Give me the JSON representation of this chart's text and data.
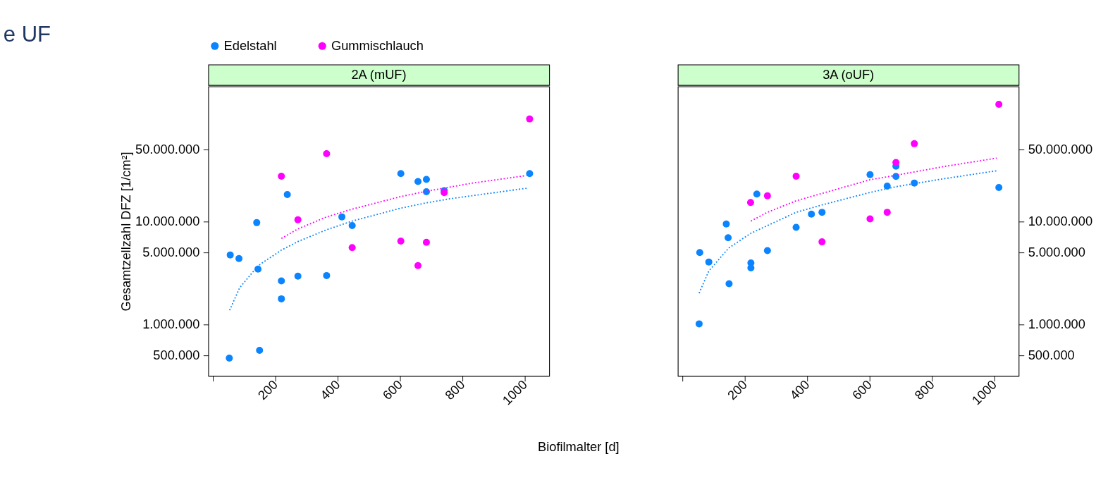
{
  "chart_data": [
    {
      "type": "scatter",
      "title": "2A (mUF)",
      "xlabel": "Biofilmalter [d]",
      "ylabel": "Gesamtzellzahl DFZ [1/cm²]",
      "annotations": [
        "e UF"
      ],
      "log": "y",
      "grid": false,
      "legend": "top",
      "marker": "circle",
      "xlim": [
        -15,
        1078
      ],
      "xticks": [
        {
          "value": 0,
          "label": null
        },
        200,
        400,
        600,
        800,
        1000
      ],
      "ylim": [
        314000,
        206000000
      ],
      "yticks": [
        {
          "value": 500000,
          "label": "500.000"
        },
        {
          "value": 1000000,
          "label": "1.000.000"
        },
        {
          "value": 5000000,
          "label": "5.000.000"
        },
        {
          "value": 10000000,
          "label": "10.000.000"
        },
        {
          "value": 50000000,
          "label": "50.000.000"
        }
      ],
      "series": [
        {
          "name": "Edelstahl",
          "color": "#0a84ff",
          "x": [
            52,
            55,
            83,
            140,
            144,
            149,
            219,
            219,
            238,
            272,
            364,
            413,
            446,
            602,
            657,
            684,
            684,
            741,
            1015
          ],
          "values": [
            469000,
            4730000,
            4360000,
            9750000,
            3440000,
            558000,
            2640000,
            1770000,
            18300000,
            2940000,
            2980000,
            11100000,
            9140000,
            29300000,
            24500000,
            25700000,
            19500000,
            20000000,
            29300000
          ]
        },
        {
          "name": "Gummischlauch",
          "color": "#ff00ff",
          "x": [
            219,
            364,
            272,
            446,
            602,
            684,
            657,
            741,
            1015
          ],
          "values": [
            27600000,
            45800000,
            10400000,
            5580000,
            6450000,
            6280000,
            3730000,
            19100000,
            99600000
          ]
        },
        {
          "type": "line",
          "line_style": "dotted",
          "marker": "none",
          "color": "#0a84ff",
          "x": [
            53,
            85,
            144,
            219,
            271,
            364,
            446,
            602,
            684,
            762,
            1006
          ],
          "values": [
            1370000,
            2260000,
            3710000,
            5270000,
            6360000,
            8320000,
            10100000,
            13500000,
            15200000,
            16700000,
            21100000
          ]
        },
        {
          "type": "line",
          "line_style": "dotted",
          "marker": "none",
          "color": "#ff00ff",
          "x": [
            219,
            271,
            364,
            446,
            602,
            684,
            833,
            1004
          ],
          "values": [
            6840000,
            8440000,
            11100000,
            13200000,
            17500000,
            19700000,
            23700000,
            28000000
          ]
        }
      ]
    },
    {
      "type": "scatter",
      "title": "3A (oUF)",
      "log": "y",
      "grid": false,
      "marker": "circle",
      "xlim": [
        -15,
        1078
      ],
      "xticks": [
        {
          "value": 0,
          "label": null
        },
        200,
        400,
        600,
        800,
        1000
      ],
      "ylim": [
        314000,
        206000000
      ],
      "yticks": [
        {
          "value": 500000,
          "label": "500.000"
        },
        {
          "value": 1000000,
          "label": "1.000.000"
        },
        {
          "value": 5000000,
          "label": "5.000.000"
        },
        {
          "value": 10000000,
          "label": "10.000.000"
        },
        {
          "value": 50000000,
          "label": "50.000.000"
        }
      ],
      "series": [
        {
          "name": "Edelstahl",
          "color": "#0a84ff",
          "x": [
            53,
            55,
            84,
            140,
            146,
            149,
            219,
            219,
            238,
            272,
            364,
            413,
            447,
            601,
            656,
            684,
            684,
            743,
            1014
          ],
          "values": [
            1010000,
            4990000,
            4040000,
            9450000,
            6960000,
            2480000,
            3950000,
            3540000,
            18500000,
            5220000,
            8770000,
            11800000,
            12300000,
            28600000,
            22100000,
            34600000,
            27500000,
            23700000,
            21400000
          ]
        },
        {
          "name": "Gummischlauch",
          "color": "#ff00ff",
          "x": [
            218,
            272,
            364,
            447,
            601,
            656,
            684,
            743,
            1014
          ],
          "values": [
            15300000,
            17800000,
            27600000,
            6340000,
            10600000,
            12300000,
            37500000,
            57200000,
            138000000
          ]
        },
        {
          "type": "line",
          "line_style": "dotted",
          "marker": "none",
          "color": "#0a84ff",
          "x": [
            53,
            84,
            148,
            219,
            364,
            447,
            601,
            684,
            838,
            1007
          ],
          "values": [
            2010000,
            3300000,
            5530000,
            7690000,
            12300000,
            14500000,
            19200000,
            21800000,
            26100000,
            31200000
          ]
        },
        {
          "type": "line",
          "line_style": "dotted",
          "marker": "none",
          "color": "#ff00ff",
          "x": [
            219,
            272,
            364,
            447,
            601,
            684,
            838,
            1007
          ],
          "values": [
            10100000,
            12300000,
            15900000,
            18800000,
            25500000,
            28200000,
            34300000,
            41400000
          ]
        }
      ]
    }
  ]
}
